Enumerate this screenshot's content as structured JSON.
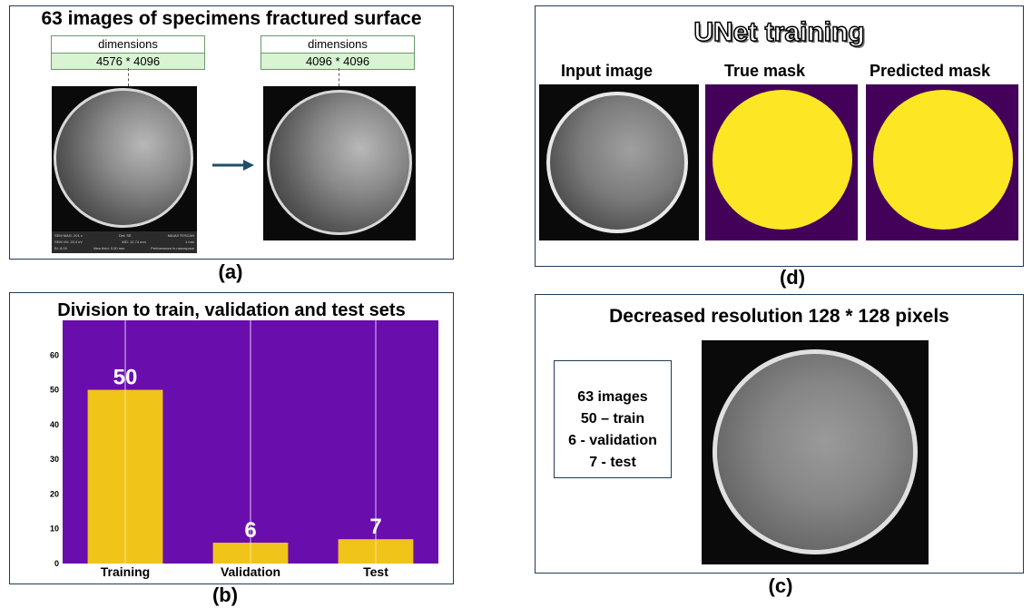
{
  "panel_a": {
    "title": "63 images of specimens fractured surface",
    "caption": "(a)",
    "left_dim": {
      "header": "dimensions",
      "value": "4576 * 4096"
    },
    "right_dim": {
      "header": "dimensions",
      "value": "4096 * 4096"
    },
    "sem_footer": {
      "line1": [
        "SEM MAG: 201 x",
        "Det: SE",
        "MAIA3 TESCAN"
      ],
      "line2": [
        "SEM HV: 20.0 kV",
        "WD: 12.74 mm",
        "1 mm"
      ],
      "line3": [
        "BI: 8.00",
        "View field: 0.00 mm",
        "Performance in nanospace"
      ]
    }
  },
  "panel_b": {
    "caption": "(b)",
    "chart_data": {
      "type": "bar",
      "title": "Division to train, validation and test sets",
      "categories": [
        "Training",
        "Validation",
        "Test"
      ],
      "values": [
        50,
        6,
        7
      ],
      "data_labels": [
        "50",
        "6",
        "7"
      ],
      "yticks": [
        "0",
        "10",
        "20",
        "30",
        "40",
        "50",
        "60"
      ],
      "ylim": [
        0,
        70
      ],
      "grid": "vertical",
      "colors": {
        "background": "#6a0dad",
        "bar": "#f0c419",
        "label": "#ffffff"
      }
    }
  },
  "panel_d": {
    "title": "UNet training",
    "caption": "(d)",
    "labels": [
      "Input image",
      "True mask",
      "Predicted mask"
    ],
    "colors": {
      "mask_bg": "#44015a",
      "mask_fg": "#fde725"
    }
  },
  "panel_c": {
    "title": "Decreased resolution 128 * 128 pixels",
    "caption": "(c)",
    "info": [
      "63 images",
      "50 – train",
      "6 - validation",
      "7 - test"
    ]
  }
}
